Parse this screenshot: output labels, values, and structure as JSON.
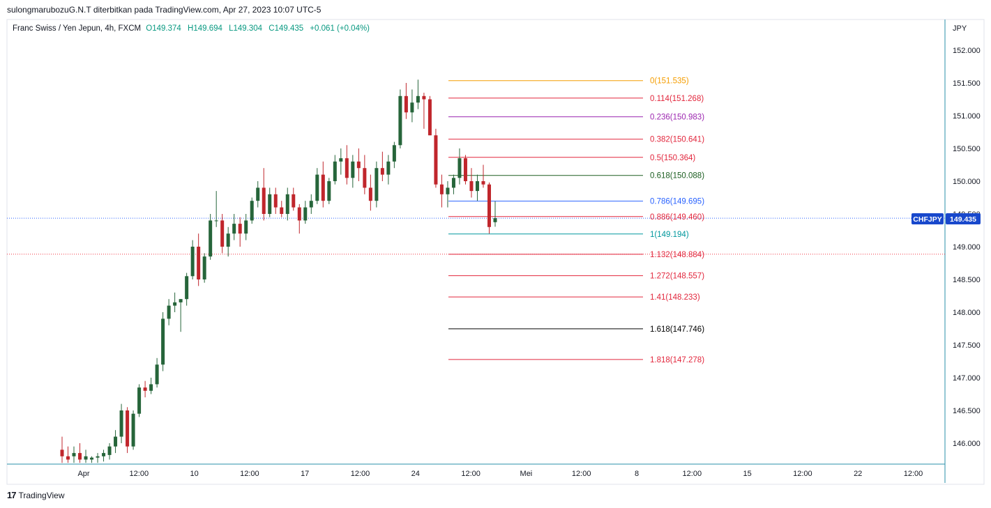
{
  "header": {
    "text": "sulongmarubozuG.N.T diterbitkan pada TradingView.com, Apr 27, 2023 10:07 UTC-5"
  },
  "legend": {
    "title": "Franc Swiss / Yen Jepun, 4h, FXCM",
    "open": "O149.374",
    "high": "H149.694",
    "low": "L149.304",
    "close": "C149.435",
    "change": "+0.061 (+0.04%)"
  },
  "footer": {
    "brand": "TradingView"
  },
  "colors": {
    "up": "#26653a",
    "down": "#c0262c",
    "accent": "#2962ff",
    "ticker_bg": "#1848cc"
  },
  "chart_data": {
    "type": "candlestick",
    "symbol": "CHFJPY",
    "timeframe": "4h",
    "currency_label": "JPY",
    "last_price": "149.435",
    "ylim": [
      145.7,
      152.5
    ],
    "y_ticks": [
      "152.000",
      "151.500",
      "151.000",
      "150.500",
      "150.000",
      "149.500",
      "149.000",
      "148.500",
      "148.000",
      "147.500",
      "147.000",
      "146.500",
      "146.000"
    ],
    "x_ticks": [
      "Apr",
      "12:00",
      "10",
      "12:00",
      "17",
      "12:00",
      "24",
      "12:00",
      "Mei",
      "12:00",
      "8",
      "12:00",
      "15",
      "12:00",
      "22",
      "12:00"
    ],
    "reference_lines": [
      {
        "price": 148.885,
        "style": "dotted",
        "color": "#f23645"
      },
      {
        "price": 149.435,
        "style": "dotted",
        "color": "#2962ff"
      }
    ],
    "fibonacci": [
      {
        "level": "0",
        "price": "151.535",
        "color": "#f59d00"
      },
      {
        "level": "0.114",
        "price": "151.268",
        "color": "#e2263c"
      },
      {
        "level": "0.236",
        "price": "150.983",
        "color": "#9c27b0"
      },
      {
        "level": "0.382",
        "price": "150.641",
        "color": "#e2263c"
      },
      {
        "level": "0.5",
        "price": "150.364",
        "color": "#e2263c"
      },
      {
        "level": "0.618",
        "price": "150.088",
        "color": "#1b5e20"
      },
      {
        "level": "0.786",
        "price": "149.695",
        "color": "#2962ff"
      },
      {
        "level": "0.886",
        "price": "149.460",
        "color": "#e2263c"
      },
      {
        "level": "1",
        "price": "149.194",
        "color": "#00979d"
      },
      {
        "level": "1.132",
        "price": "148.884",
        "color": "#e2263c"
      },
      {
        "level": "1.272",
        "price": "148.557",
        "color": "#e2263c"
      },
      {
        "level": "1.41",
        "price": "148.233",
        "color": "#e2263c"
      },
      {
        "level": "1.618",
        "price": "147.746",
        "color": "#000000"
      },
      {
        "level": "1.818",
        "price": "147.278",
        "color": "#e2263c"
      }
    ],
    "candles": [
      [
        145.9,
        146.1,
        145.7,
        145.8
      ],
      [
        145.8,
        145.95,
        145.7,
        145.75
      ],
      [
        145.8,
        145.95,
        145.7,
        145.85
      ],
      [
        145.85,
        146.0,
        145.7,
        145.75
      ],
      [
        145.75,
        145.9,
        145.7,
        145.8
      ],
      [
        145.75,
        145.8,
        145.7,
        145.78
      ],
      [
        145.78,
        145.85,
        145.7,
        145.8
      ],
      [
        145.8,
        145.9,
        145.72,
        145.85
      ],
      [
        145.82,
        146.0,
        145.75,
        145.95
      ],
      [
        145.95,
        146.2,
        145.85,
        146.1
      ],
      [
        146.1,
        146.6,
        146.0,
        146.5
      ],
      [
        146.5,
        146.55,
        145.85,
        145.95
      ],
      [
        145.95,
        146.5,
        145.9,
        146.45
      ],
      [
        146.45,
        146.9,
        146.4,
        146.85
      ],
      [
        146.85,
        146.95,
        146.7,
        146.8
      ],
      [
        146.8,
        147.0,
        146.75,
        146.9
      ],
      [
        146.9,
        147.3,
        146.85,
        147.2
      ],
      [
        147.2,
        148.0,
        147.1,
        147.9
      ],
      [
        147.9,
        148.2,
        147.8,
        148.1
      ],
      [
        148.1,
        148.3,
        148.0,
        148.15
      ],
      [
        148.15,
        148.2,
        147.7,
        148.2
      ],
      [
        148.2,
        148.6,
        148.1,
        148.55
      ],
      [
        148.55,
        149.1,
        148.5,
        149.0
      ],
      [
        149.0,
        149.2,
        148.4,
        148.5
      ],
      [
        148.5,
        148.9,
        148.45,
        148.85
      ],
      [
        148.85,
        149.5,
        148.8,
        149.4
      ],
      [
        149.4,
        149.85,
        149.3,
        149.4
      ],
      [
        149.4,
        149.5,
        148.9,
        149.0
      ],
      [
        149.0,
        149.3,
        148.85,
        149.2
      ],
      [
        149.2,
        149.5,
        149.1,
        149.35
      ],
      [
        149.35,
        149.45,
        149.0,
        149.2
      ],
      [
        149.2,
        149.5,
        149.1,
        149.4
      ],
      [
        149.4,
        149.75,
        149.35,
        149.7
      ],
      [
        149.7,
        150.0,
        149.6,
        149.9
      ],
      [
        149.9,
        150.2,
        149.4,
        149.5
      ],
      [
        149.5,
        149.9,
        149.45,
        149.8
      ],
      [
        149.8,
        149.9,
        149.5,
        149.6
      ],
      [
        149.6,
        149.7,
        149.45,
        149.5
      ],
      [
        149.5,
        149.9,
        149.4,
        149.8
      ],
      [
        149.8,
        149.9,
        149.55,
        149.6
      ],
      [
        149.6,
        149.65,
        149.2,
        149.4
      ],
      [
        149.4,
        149.7,
        149.35,
        149.6
      ],
      [
        149.6,
        149.8,
        149.5,
        149.7
      ],
      [
        149.7,
        150.2,
        149.65,
        150.1
      ],
      [
        150.1,
        150.3,
        149.6,
        149.7
      ],
      [
        149.7,
        150.05,
        149.65,
        150.0
      ],
      [
        150.0,
        150.4,
        149.95,
        150.3
      ],
      [
        150.3,
        150.5,
        150.1,
        150.35
      ],
      [
        150.35,
        150.55,
        149.95,
        150.05
      ],
      [
        150.05,
        150.4,
        149.9,
        150.3
      ],
      [
        150.3,
        150.5,
        150.0,
        150.2
      ],
      [
        150.2,
        150.4,
        149.8,
        149.9
      ],
      [
        149.9,
        150.1,
        149.55,
        149.7
      ],
      [
        149.7,
        150.3,
        149.6,
        150.2
      ],
      [
        150.2,
        150.45,
        150.0,
        150.1
      ],
      [
        150.1,
        150.4,
        149.95,
        150.3
      ],
      [
        150.3,
        150.6,
        150.2,
        150.55
      ],
      [
        150.55,
        151.4,
        150.5,
        151.3
      ],
      [
        151.3,
        151.5,
        150.95,
        151.05
      ],
      [
        151.05,
        151.4,
        150.9,
        151.2
      ],
      [
        151.2,
        151.55,
        151.1,
        151.3
      ],
      [
        151.3,
        151.35,
        150.8,
        151.25
      ],
      [
        151.25,
        151.3,
        150.7,
        150.7
      ],
      [
        150.7,
        150.8,
        149.9,
        149.95
      ],
      [
        149.95,
        150.1,
        149.6,
        149.8
      ],
      [
        149.8,
        150.0,
        149.6,
        149.9
      ],
      [
        149.9,
        150.1,
        149.8,
        150.05
      ],
      [
        150.05,
        150.5,
        149.95,
        150.35
      ],
      [
        150.35,
        150.4,
        149.95,
        150.0
      ],
      [
        150.0,
        150.2,
        149.75,
        149.85
      ],
      [
        149.85,
        150.1,
        149.7,
        150.0
      ],
      [
        150.0,
        150.25,
        149.9,
        149.95
      ],
      [
        149.95,
        149.98,
        149.2,
        149.3
      ],
      [
        149.374,
        149.694,
        149.304,
        149.435
      ]
    ]
  }
}
